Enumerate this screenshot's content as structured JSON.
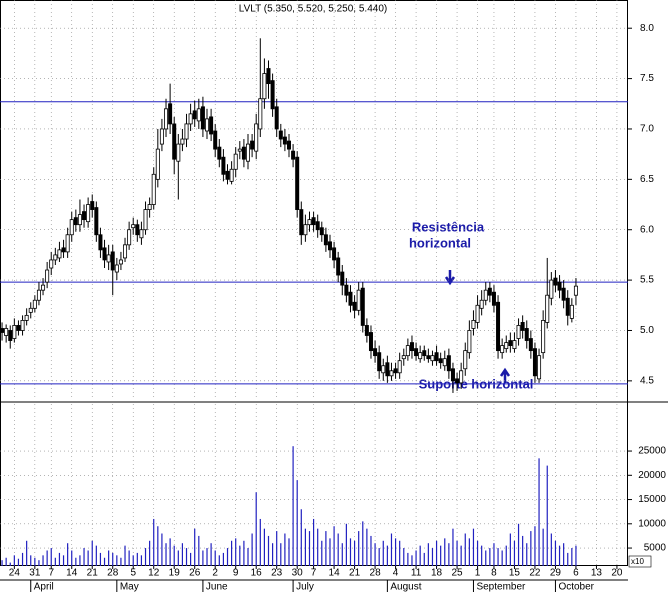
{
  "chart_data": {
    "type": "candlestick",
    "title": "LVLT (5.350, 5.520, 5.250, 5.440)",
    "open": [
      5.02,
      4.95,
      5.0,
      4.92,
      5.05,
      5.0,
      5.1,
      5.18,
      5.22,
      5.3,
      5.4,
      5.48,
      5.62,
      5.7,
      5.72,
      5.82,
      5.78,
      5.95,
      6.12,
      6.05,
      6.18,
      6.08,
      6.28,
      6.22,
      5.95,
      5.82,
      5.68,
      5.78,
      5.58,
      5.66,
      5.72,
      5.85,
      6.02,
      6.05,
      5.92,
      6.0,
      6.2,
      6.25,
      6.5,
      6.85,
      7.0,
      7.25,
      7.05,
      6.68,
      6.85,
      6.9,
      7.05,
      7.18,
      7.08,
      7.22,
      6.98,
      7.12,
      6.98,
      6.82,
      6.72,
      6.58,
      6.48,
      6.6,
      6.78,
      6.82,
      6.68,
      6.88,
      6.78,
      7.0,
      7.3,
      7.6,
      7.48,
      7.22,
      6.98,
      6.92,
      6.88,
      6.78,
      6.72,
      6.2,
      5.95,
      6.05,
      6.12,
      6.08,
      6.02,
      5.95,
      5.88,
      5.82,
      5.72,
      5.58,
      5.45,
      5.38,
      5.28,
      5.2,
      5.42,
      5.05,
      4.98,
      4.82,
      4.78,
      4.58,
      4.68,
      4.55,
      4.62,
      4.58,
      4.72,
      4.75,
      4.88,
      4.82,
      4.72,
      4.8,
      4.75,
      4.7,
      4.78,
      4.72,
      4.65,
      4.75,
      4.62,
      4.52,
      4.48,
      4.62,
      4.78,
      5.02,
      5.08,
      5.22,
      5.3,
      5.42,
      5.38,
      5.28,
      4.78,
      4.82,
      4.9,
      4.82,
      4.92,
      5.08,
      5.02,
      4.92,
      4.82,
      4.52,
      4.78,
      5.08,
      5.32,
      5.52,
      5.48,
      5.42,
      5.32,
      5.12,
      5.35
    ],
    "high": [
      5.08,
      5.06,
      5.05,
      5.12,
      5.1,
      5.15,
      5.22,
      5.28,
      5.35,
      5.48,
      5.52,
      5.68,
      5.78,
      5.82,
      5.88,
      5.9,
      6.02,
      6.18,
      6.2,
      6.3,
      6.25,
      6.32,
      6.35,
      6.28,
      6.02,
      5.9,
      5.85,
      5.85,
      5.72,
      5.78,
      5.92,
      6.08,
      6.12,
      6.1,
      6.08,
      6.28,
      6.32,
      6.62,
      7.0,
      7.1,
      7.3,
      7.45,
      7.12,
      6.95,
      7.0,
      7.15,
      7.25,
      7.28,
      7.3,
      7.32,
      7.2,
      7.2,
      7.05,
      6.9,
      6.8,
      6.65,
      6.68,
      6.82,
      6.88,
      6.9,
      6.95,
      6.95,
      7.15,
      7.9,
      7.7,
      7.68,
      7.55,
      7.3,
      7.05,
      7.0,
      6.95,
      6.85,
      6.78,
      6.28,
      6.15,
      6.18,
      6.18,
      6.15,
      6.08,
      6.02,
      5.95,
      5.88,
      5.78,
      5.65,
      5.52,
      5.45,
      5.35,
      5.48,
      5.48,
      5.12,
      5.05,
      4.9,
      4.85,
      4.72,
      4.75,
      4.68,
      4.68,
      4.78,
      4.82,
      4.92,
      4.95,
      4.88,
      4.85,
      4.85,
      4.82,
      4.8,
      4.85,
      4.78,
      4.8,
      4.82,
      4.68,
      4.58,
      4.68,
      4.88,
      5.1,
      5.2,
      5.35,
      5.4,
      5.48,
      5.48,
      5.45,
      5.35,
      4.92,
      4.95,
      4.98,
      4.98,
      5.12,
      5.15,
      5.1,
      5.0,
      4.88,
      4.82,
      5.2,
      5.72,
      5.58,
      5.6,
      5.55,
      5.5,
      5.4,
      5.32,
      5.52
    ],
    "low": [
      4.9,
      4.88,
      4.82,
      4.88,
      4.95,
      4.95,
      5.05,
      5.12,
      5.18,
      5.25,
      5.35,
      5.42,
      5.55,
      5.65,
      5.68,
      5.72,
      5.72,
      5.88,
      5.98,
      5.98,
      6.02,
      6.02,
      6.12,
      5.88,
      5.72,
      5.62,
      5.6,
      5.35,
      5.5,
      5.6,
      5.68,
      5.8,
      5.95,
      5.88,
      5.85,
      5.95,
      6.12,
      6.2,
      6.42,
      6.78,
      6.92,
      6.95,
      6.55,
      6.3,
      6.78,
      6.82,
      6.98,
      7.02,
      7.0,
      6.92,
      6.9,
      6.88,
      6.72,
      6.62,
      6.48,
      6.45,
      6.45,
      6.52,
      6.7,
      6.62,
      6.6,
      6.72,
      6.7,
      6.92,
      7.2,
      7.3,
      7.12,
      6.92,
      6.82,
      6.78,
      6.72,
      6.62,
      6.12,
      5.85,
      5.88,
      5.98,
      5.98,
      5.92,
      5.88,
      5.78,
      5.72,
      5.62,
      5.48,
      5.35,
      5.28,
      5.18,
      5.12,
      5.15,
      4.98,
      4.88,
      4.72,
      4.68,
      4.52,
      4.5,
      4.48,
      4.5,
      4.52,
      4.52,
      4.65,
      4.7,
      4.72,
      4.7,
      4.68,
      4.7,
      4.68,
      4.65,
      4.65,
      4.62,
      4.6,
      4.52,
      4.38,
      4.4,
      4.42,
      4.55,
      4.72,
      4.95,
      5.02,
      5.15,
      5.25,
      5.28,
      5.18,
      4.72,
      4.72,
      4.78,
      4.78,
      4.78,
      4.85,
      4.92,
      4.82,
      4.72,
      4.48,
      4.48,
      4.72,
      5.02,
      5.25,
      5.38,
      5.32,
      5.22,
      5.05,
      5.08,
      5.25
    ],
    "close": [
      4.98,
      5.02,
      4.9,
      5.05,
      5.0,
      5.1,
      5.15,
      5.22,
      5.3,
      5.4,
      5.45,
      5.6,
      5.7,
      5.75,
      5.8,
      5.78,
      5.95,
      6.1,
      6.05,
      6.15,
      6.1,
      6.25,
      6.2,
      5.95,
      5.8,
      5.7,
      5.75,
      5.6,
      5.65,
      5.7,
      5.85,
      6.0,
      6.05,
      5.95,
      6.0,
      6.2,
      6.25,
      6.55,
      6.8,
      7.0,
      7.2,
      7.05,
      6.7,
      6.85,
      6.9,
      7.05,
      7.15,
      7.1,
      7.2,
      7.0,
      7.1,
      6.95,
      6.8,
      6.7,
      6.55,
      6.5,
      6.6,
      6.75,
      6.8,
      6.7,
      6.85,
      6.8,
      7.05,
      7.3,
      7.55,
      7.45,
      7.2,
      7.0,
      6.9,
      6.85,
      6.8,
      6.7,
      6.2,
      5.95,
      6.05,
      6.1,
      6.05,
      6.0,
      5.95,
      5.85,
      5.8,
      5.7,
      5.55,
      5.45,
      5.35,
      5.25,
      5.2,
      5.4,
      5.05,
      4.95,
      4.8,
      4.75,
      4.6,
      4.65,
      4.55,
      4.6,
      4.58,
      4.7,
      4.75,
      4.85,
      4.8,
      4.75,
      4.78,
      4.75,
      4.72,
      4.75,
      4.7,
      4.68,
      4.72,
      4.6,
      4.5,
      4.48,
      4.6,
      4.8,
      5.0,
      5.1,
      5.25,
      5.3,
      5.4,
      5.35,
      5.25,
      4.8,
      4.85,
      4.88,
      4.85,
      4.9,
      5.05,
      5.0,
      4.9,
      4.8,
      4.55,
      4.75,
      5.1,
      5.35,
      5.5,
      5.45,
      5.4,
      5.3,
      5.15,
      5.25,
      5.44
    ],
    "up_color": "#ffffff",
    "down_color": "#000000",
    "ylim": [
      4.31,
      8.28
    ],
    "yticks": [
      4.5,
      {
        "value": 5,
        "label": "5.0"
      },
      5.5,
      {
        "value": 6,
        "label": "6.0"
      },
      6.5,
      {
        "value": 7,
        "label": "7.0"
      },
      7.5,
      {
        "value": 8,
        "label": "8.0"
      }
    ],
    "xlim": [
      -0.5,
      152.7
    ],
    "xticks": [
      {
        "value": 3,
        "label": "24"
      },
      {
        "value": 8,
        "label": "31"
      },
      {
        "value": 12,
        "label": "7"
      },
      {
        "value": 17,
        "label": "14"
      },
      {
        "value": 22,
        "label": "21"
      },
      {
        "value": 27,
        "label": "28"
      },
      {
        "value": 32,
        "label": "5"
      },
      {
        "value": 37,
        "label": "12"
      },
      {
        "value": 42,
        "label": "19"
      },
      {
        "value": 47,
        "label": "26"
      },
      {
        "value": 52,
        "label": "2"
      },
      {
        "value": 57,
        "label": "9"
      },
      {
        "value": 62,
        "label": "16"
      },
      {
        "value": 67,
        "label": "23"
      },
      {
        "value": 72,
        "label": "30"
      },
      {
        "value": 76,
        "label": "7"
      },
      {
        "value": 81,
        "label": "14"
      },
      {
        "value": 86,
        "label": "21"
      },
      {
        "value": 91,
        "label": "28"
      },
      {
        "value": 96,
        "label": "4"
      },
      {
        "value": 101,
        "label": "11"
      },
      {
        "value": 106,
        "label": "18"
      },
      {
        "value": 111,
        "label": "25"
      },
      {
        "value": 116,
        "label": "1"
      },
      {
        "value": 120,
        "label": "8"
      },
      {
        "value": 125,
        "label": "15"
      },
      {
        "value": 130,
        "label": "22"
      },
      {
        "value": 135,
        "label": "29"
      },
      {
        "value": 140,
        "label": "6"
      },
      {
        "value": 145,
        "label": "13"
      },
      {
        "value": 150,
        "label": "20"
      }
    ],
    "months": [
      {
        "value": 7,
        "label": "April"
      },
      {
        "value": 28,
        "label": "May"
      },
      {
        "value": 49,
        "label": "June"
      },
      {
        "value": 71,
        "label": "July"
      },
      {
        "value": 94,
        "label": "August"
      },
      {
        "value": 115,
        "label": "September"
      },
      {
        "value": 135,
        "label": "October"
      }
    ],
    "lines": {
      "values": [
        7.27,
        5.48,
        4.47
      ],
      "color": "#2020c0"
    },
    "annotations": [
      "Resistência",
      "horizontal",
      "Suporte horizontal"
    ],
    "grid": true,
    "volume": {
      "color": "#2020c0",
      "multiplier": "x10",
      "ylim": [
        1300,
        34700
      ],
      "yticks": [
        5000,
        10000,
        15000,
        20000,
        25000
      ],
      "values": [
        2500,
        3000,
        2000,
        3500,
        2800,
        4000,
        6500,
        3500,
        3000,
        2500,
        3500,
        4500,
        5000,
        3000,
        4000,
        3500,
        6000,
        4500,
        3000,
        3500,
        5000,
        4500,
        6500,
        5500,
        4000,
        3000,
        4500,
        4000,
        3500,
        3000,
        5500,
        4500,
        3500,
        4000,
        3500,
        5000,
        6500,
        11000,
        9500,
        8000,
        6000,
        7000,
        5500,
        4500,
        6000,
        5000,
        4000,
        9000,
        7500,
        4500,
        5000,
        6000,
        4500,
        3500,
        4000,
        5000,
        6500,
        7000,
        5500,
        6500,
        5000,
        8000,
        16500,
        11000,
        9000,
        7500,
        6000,
        8500,
        6000,
        8000,
        7000,
        26000,
        19000,
        13000,
        9000,
        8500,
        11000,
        9000,
        6500,
        8500,
        7000,
        9500,
        8000,
        6000,
        10000,
        7000,
        6500,
        8500,
        10500,
        9000,
        7500,
        6000,
        5000,
        6500,
        5500,
        8000,
        7000,
        6500,
        5000,
        4000,
        3500,
        4500,
        5500,
        4000,
        6000,
        5000,
        6500,
        5500,
        7000,
        6000,
        9000,
        6500,
        5500,
        8000,
        7000,
        9000,
        6500,
        5500,
        4500,
        5000,
        6000,
        5000,
        4500,
        5500,
        8000,
        6500,
        10000,
        7500,
        6000,
        8500,
        9500,
        23500,
        9000,
        22000,
        8000,
        6500,
        5500,
        6000,
        4000,
        5000,
        5500
      ]
    }
  }
}
